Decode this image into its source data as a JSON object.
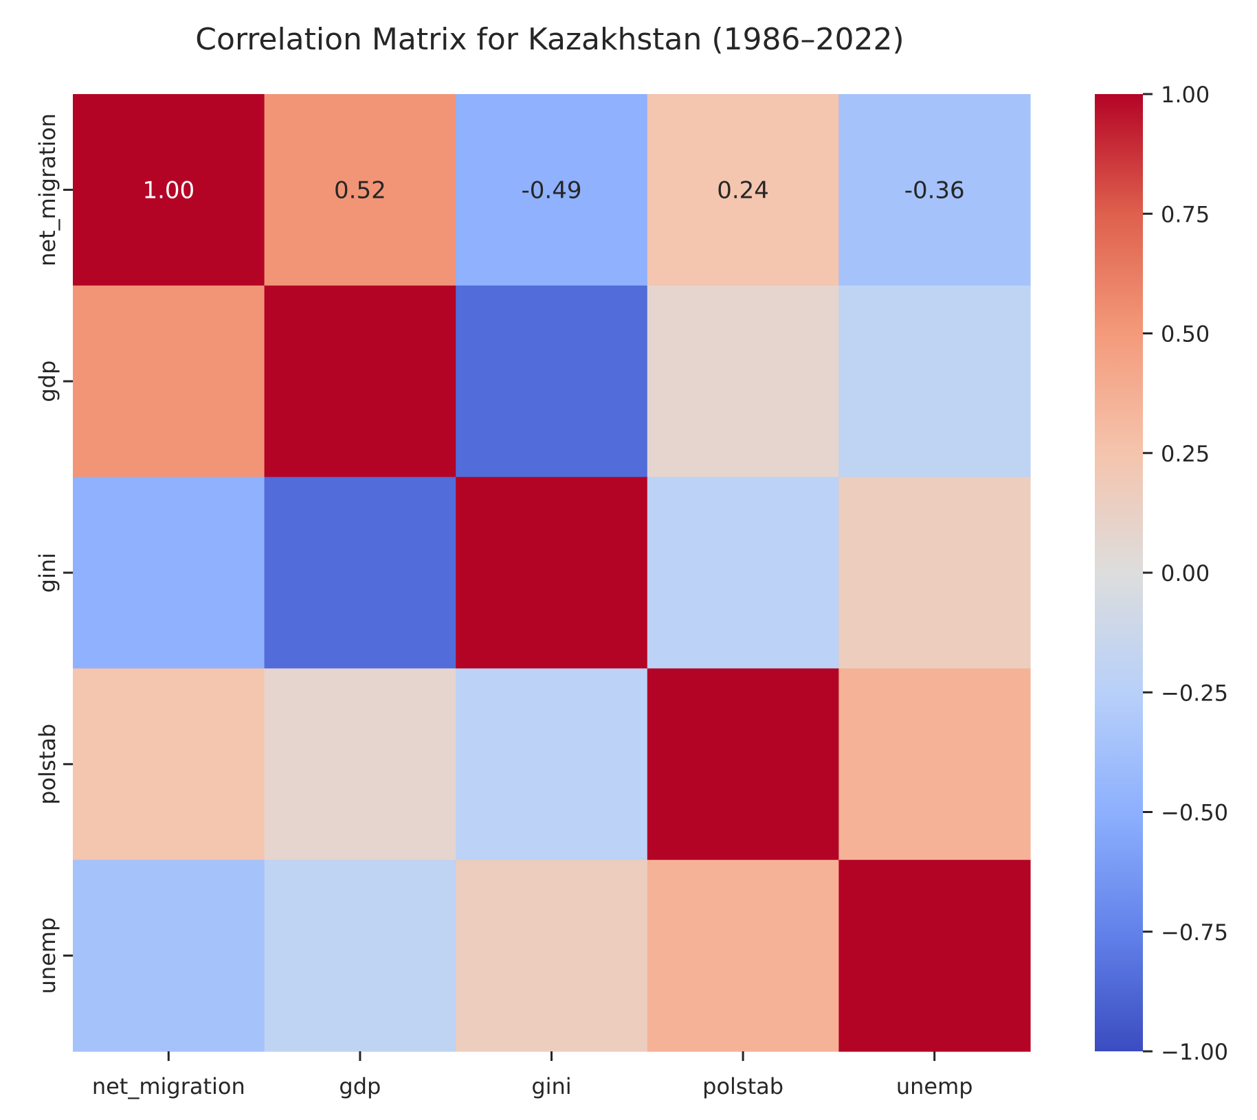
{
  "chart_data": {
    "type": "heatmap",
    "title": "Correlation Matrix for Kazakhstan (1986–2022)",
    "xlabel": "",
    "ylabel": "",
    "x_categories": [
      "net_migration",
      "gdp",
      "gini",
      "polstab",
      "unemp"
    ],
    "y_categories": [
      "net_migration",
      "gdp",
      "gini",
      "polstab",
      "unemp"
    ],
    "values": [
      [
        1.0,
        0.52,
        -0.49,
        0.24,
        -0.36
      ],
      [
        0.52,
        1.0,
        -0.85,
        0.08,
        -0.2
      ],
      [
        -0.49,
        -0.85,
        1.0,
        -0.22,
        0.16
      ],
      [
        0.24,
        0.08,
        -0.22,
        1.0,
        0.36
      ],
      [
        -0.36,
        -0.2,
        0.16,
        0.36,
        1.0
      ]
    ],
    "annotated_row": 0,
    "annotations": [
      "1.00",
      "0.52",
      "-0.49",
      "0.24",
      "-0.36"
    ],
    "colormap": "coolwarm",
    "vmin": -1.0,
    "vmax": 1.0,
    "colorbar": {
      "ticks": [
        1.0,
        0.75,
        0.5,
        0.25,
        0.0,
        -0.25,
        -0.5,
        -0.75,
        -1.0
      ],
      "tick_labels": [
        "1.00",
        "0.75",
        "0.50",
        "0.25",
        "0.00",
        "−0.25",
        "−0.50",
        "−0.75",
        "−1.00"
      ]
    },
    "grid": false,
    "legend": "colorbar-right"
  }
}
